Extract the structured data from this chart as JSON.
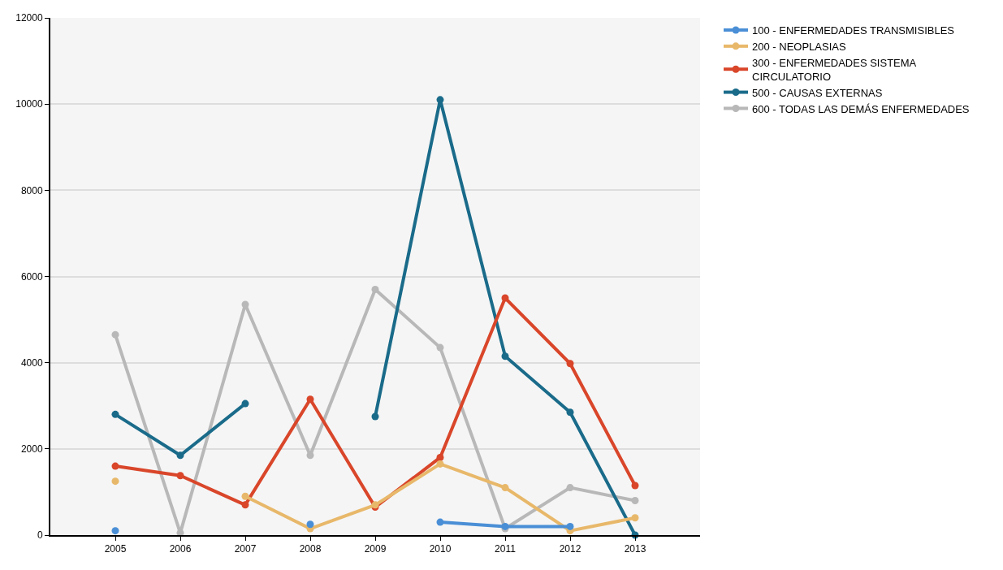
{
  "chart_data": {
    "type": "line",
    "x": [
      2005,
      2006,
      2007,
      2008,
      2009,
      2010,
      2011,
      2012,
      2013
    ],
    "series": [
      {
        "name": "100 - ENFERMEDADES TRANSMISIBLES",
        "color": "#4a8fd6",
        "values": [
          100,
          null,
          null,
          250,
          null,
          300,
          200,
          200,
          null
        ]
      },
      {
        "name": "200 - NEOPLASIAS",
        "color": "#e8b86a",
        "values": [
          1250,
          null,
          900,
          150,
          700,
          1650,
          1100,
          100,
          400
        ]
      },
      {
        "name": "300 - ENFERMEDADES SISTEMA CIRCULATORIO",
        "color": "#d9462a",
        "values": [
          1600,
          1380,
          700,
          3150,
          650,
          1800,
          5500,
          3980,
          1150
        ]
      },
      {
        "name": "500 - CAUSAS EXTERNAS",
        "color": "#1a6b8a",
        "values": [
          2800,
          1850,
          3050,
          null,
          2750,
          10100,
          4150,
          2850,
          0
        ]
      },
      {
        "name": "600 - TODAS LAS DEMÁS ENFERMEDADES",
        "color": "#b8b8b8",
        "values": [
          4650,
          50,
          5350,
          1850,
          5700,
          4350,
          150,
          1100,
          800
        ]
      }
    ],
    "xlim": [
      2004,
      2014
    ],
    "xticks": [
      2005,
      2006,
      2007,
      2008,
      2009,
      2010,
      2011,
      2012,
      2013
    ],
    "ylim": [
      0,
      12000
    ],
    "yticks": [
      0,
      2000,
      4000,
      6000,
      8000,
      10000,
      12000
    ],
    "grid": "y",
    "legend": "top right",
    "marker": "circle",
    "line_style": "solid"
  }
}
